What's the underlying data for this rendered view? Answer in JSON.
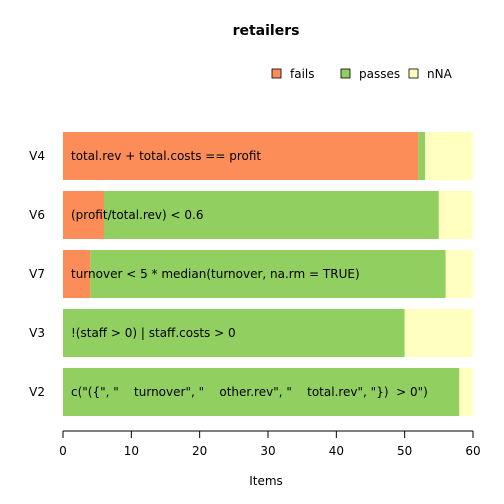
{
  "chart_data": {
    "type": "bar",
    "orientation": "horizontal",
    "stacked": true,
    "title": "retailers",
    "xlabel": "Items",
    "ylabel": "",
    "xlim": [
      0,
      60
    ],
    "xticks": [
      "0",
      "10",
      "20",
      "30",
      "40",
      "50",
      "60"
    ],
    "categories": [
      "V2",
      "V3",
      "V7",
      "V6",
      "V4"
    ],
    "bar_labels": [
      "c(\"({\", \"    turnover\", \"    other.rev\", \"    total.rev\", \"})  > 0\")",
      "!(staff > 0) | staff.costs > 0",
      "turnover < 5 * median(turnover, na.rm = TRUE)",
      "(profit/total.rev) < 0.6",
      "total.rev + total.costs == profit"
    ],
    "series": [
      {
        "name": "fails",
        "color": "#fc8d59",
        "values": [
          0,
          0,
          4,
          6,
          52
        ]
      },
      {
        "name": "passes",
        "color": "#91cf60",
        "values": [
          58,
          50,
          52,
          49,
          1
        ]
      },
      {
        "name": "nNA",
        "color": "#ffffbf",
        "values": [
          2,
          10,
          4,
          5,
          7
        ]
      }
    ],
    "legend": {
      "placement": "top-right"
    },
    "grid": false
  }
}
